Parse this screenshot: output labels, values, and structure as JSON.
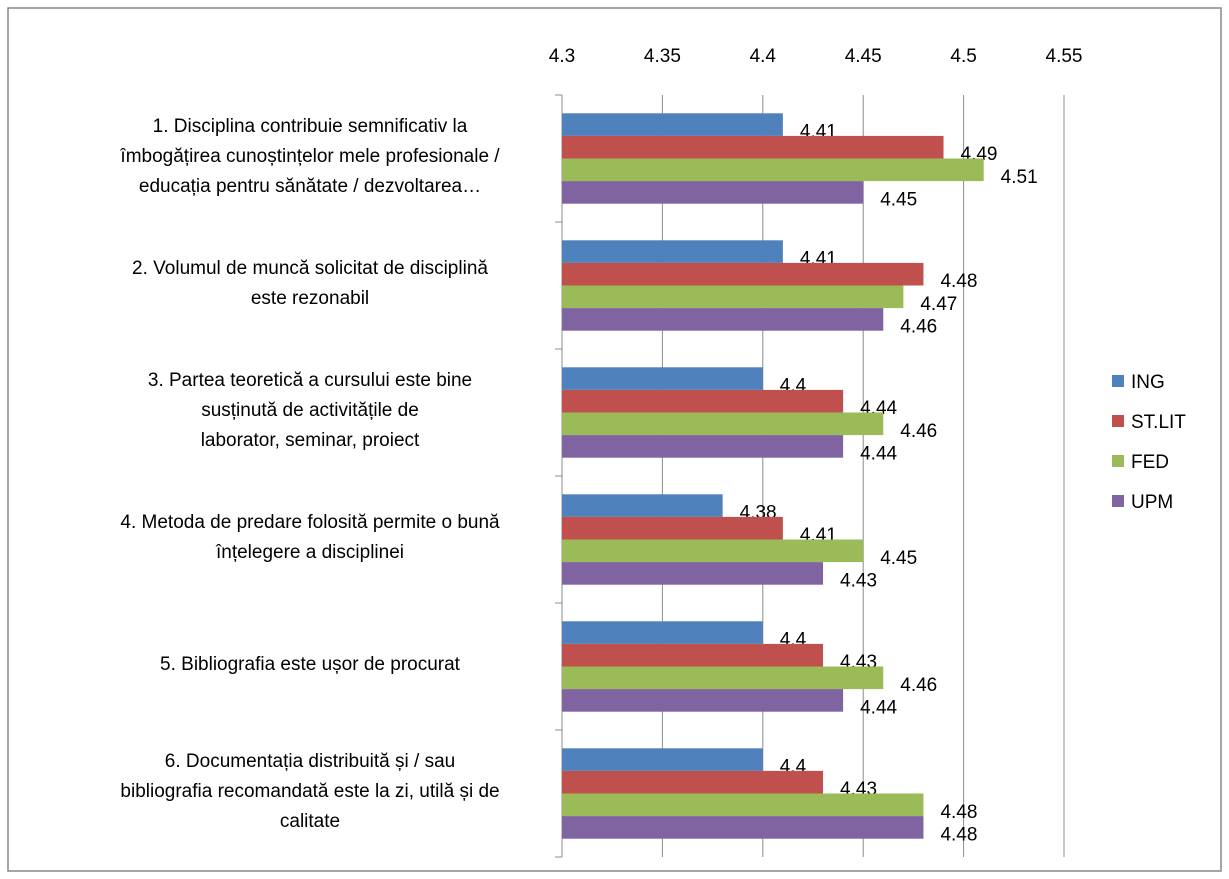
{
  "chart_data": {
    "type": "bar",
    "orientation": "horizontal",
    "categories": [
      "1. Disciplina contribuie semnificativ la\nîmbogățirea cunoștințelor mele profesionale /\neducația pentru sănătate / dezvoltarea…",
      "2. Volumul de muncă solicitat de disciplină\neste rezonabil",
      "3. Partea teoretică a cursului este bine\nsusținută de activitățile de\nlaborator, seminar, proiect",
      "4. Metoda de predare folosită permite o bună\nînțelegere a disciplinei",
      "5. Bibliografia este ușor de procurat",
      "6. Documentația distribuită și / sau\nbibliografia recomandată este la zi, utilă și de\ncalitate"
    ],
    "series": [
      {
        "name": "ING",
        "color": "#4f81bd",
        "values": [
          4.41,
          4.41,
          4.4,
          4.38,
          4.4,
          4.4
        ]
      },
      {
        "name": "ST.LIT",
        "color": "#c0504d",
        "values": [
          4.49,
          4.48,
          4.44,
          4.41,
          4.43,
          4.43
        ]
      },
      {
        "name": "FED",
        "color": "#9bbb59",
        "values": [
          4.51,
          4.47,
          4.46,
          4.45,
          4.46,
          4.48
        ]
      },
      {
        "name": "UPM",
        "color": "#8064a2",
        "values": [
          4.45,
          4.46,
          4.44,
          4.43,
          4.44,
          4.48
        ]
      }
    ],
    "xlim": [
      4.3,
      4.55
    ],
    "xticks": [
      4.3,
      4.35,
      4.4,
      4.45,
      4.5,
      4.55
    ],
    "grid": true,
    "legend": "right"
  }
}
